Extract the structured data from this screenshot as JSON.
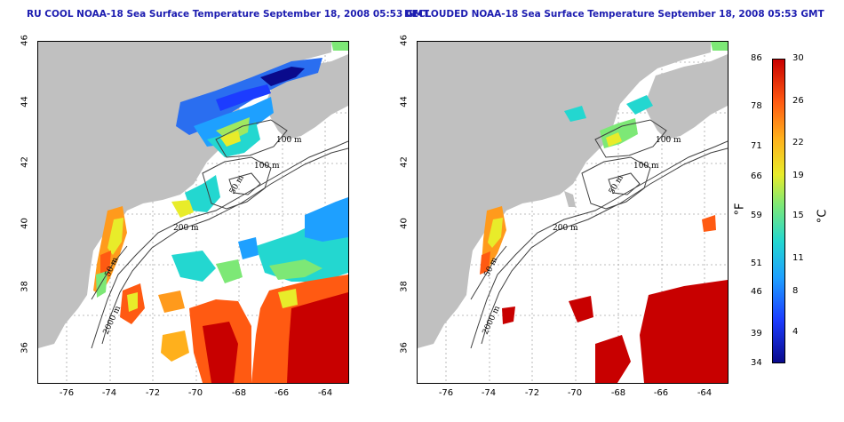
{
  "titles": {
    "left": "RU COOL NOAA-18 Sea Surface Temperature September 18, 2008 05:53 GMT",
    "right": "DECLOUDED NOAA-18 Sea Surface Temperature September 18, 2008 05:53 GMT"
  },
  "axes": {
    "lat_ticks": [
      "46",
      "44",
      "42",
      "40",
      "38",
      "36"
    ],
    "lon_ticks": [
      "-76",
      "-74",
      "-72",
      "-70",
      "-68",
      "-66",
      "-64"
    ]
  },
  "bathymetry_labels": {
    "left": [
      "100 m",
      "100 m",
      "50 m",
      "200 m",
      "50 m",
      "2000 m"
    ],
    "right": [
      "100 m",
      "100 m",
      "50 m",
      "200 m",
      "50 m",
      "2000 m"
    ]
  },
  "colorbar": {
    "fahrenheit_ticks": [
      "86",
      "78",
      "71",
      "66",
      "59",
      "51",
      "46",
      "39",
      "34"
    ],
    "celsius_ticks": [
      "30",
      "26",
      "22",
      "19",
      "15",
      "11",
      "8",
      "4"
    ],
    "f_unit": "°F",
    "c_unit": "°C",
    "range_c": [
      0,
      30
    ],
    "colors": [
      "#0a0a8c",
      "#1c3cff",
      "#1ea0ff",
      "#23d7d0",
      "#7de876",
      "#e8ec2a",
      "#ffb01c",
      "#ff5a12",
      "#c80000"
    ]
  },
  "colors": {
    "land": "#c0c0c0",
    "contour": "#404040",
    "grid": "#a8a8a8",
    "title": "#1c1cb0"
  }
}
